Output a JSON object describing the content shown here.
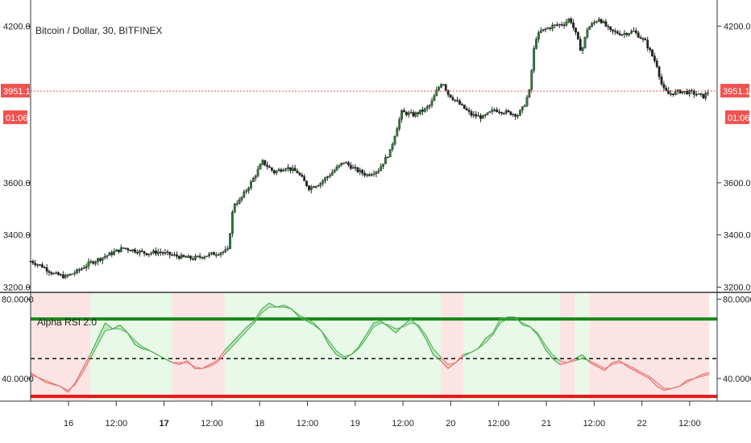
{
  "chart_data": [
    {
      "type": "candlestick",
      "title": "Bitcoin / Dollar, 30, BITFINEX",
      "ylim": [
        3180,
        4300
      ],
      "y_ticks": [
        3200,
        3400,
        3600,
        4200
      ],
      "y_tick_labels": [
        "3200.0",
        "3400.0",
        "3600.0",
        "4200.0"
      ],
      "x_tick_labels": [
        "16",
        "12:00",
        "17",
        "12:00",
        "18",
        "12:00",
        "19",
        "12:00",
        "20",
        "12:00",
        "21",
        "12:00",
        "22",
        "12:00"
      ],
      "x_tick_bold": [
        false,
        false,
        true,
        false,
        false,
        false,
        false,
        false,
        false,
        false,
        false,
        false,
        false,
        false
      ],
      "current_price": 3951.1,
      "current_price_label": "3951.1",
      "countdown_label": "01:06",
      "price_path": [
        [
          0,
          3300
        ],
        [
          10,
          3280
        ],
        [
          20,
          3250
        ],
        [
          30,
          3240
        ],
        [
          40,
          3260
        ],
        [
          50,
          3290
        ],
        [
          60,
          3310
        ],
        [
          70,
          3330
        ],
        [
          80,
          3350
        ],
        [
          90,
          3340
        ],
        [
          100,
          3330
        ],
        [
          110,
          3335
        ],
        [
          120,
          3325
        ],
        [
          130,
          3315
        ],
        [
          140,
          3310
        ],
        [
          150,
          3320
        ],
        [
          160,
          3330
        ],
        [
          170,
          3340
        ],
        [
          175,
          3520
        ],
        [
          180,
          3530
        ],
        [
          190,
          3600
        ],
        [
          200,
          3680
        ],
        [
          210,
          3640
        ],
        [
          220,
          3660
        ],
        [
          230,
          3640
        ],
        [
          240,
          3580
        ],
        [
          250,
          3600
        ],
        [
          260,
          3640
        ],
        [
          270,
          3680
        ],
        [
          280,
          3650
        ],
        [
          290,
          3630
        ],
        [
          300,
          3650
        ],
        [
          310,
          3720
        ],
        [
          315,
          3800
        ],
        [
          320,
          3870
        ],
        [
          330,
          3860
        ],
        [
          340,
          3880
        ],
        [
          345,
          3900
        ],
        [
          350,
          3950
        ],
        [
          355,
          3990
        ],
        [
          360,
          3940
        ],
        [
          370,
          3900
        ],
        [
          380,
          3860
        ],
        [
          390,
          3850
        ],
        [
          400,
          3880
        ],
        [
          410,
          3870
        ],
        [
          420,
          3860
        ],
        [
          425,
          3890
        ],
        [
          430,
          3950
        ],
        [
          435,
          4150
        ],
        [
          440,
          4180
        ],
        [
          450,
          4200
        ],
        [
          460,
          4210
        ],
        [
          465,
          4230
        ],
        [
          470,
          4170
        ],
        [
          475,
          4100
        ],
        [
          480,
          4190
        ],
        [
          490,
          4230
        ],
        [
          500,
          4180
        ],
        [
          510,
          4170
        ],
        [
          520,
          4180
        ],
        [
          530,
          4140
        ],
        [
          540,
          4050
        ],
        [
          545,
          3960
        ],
        [
          550,
          3940
        ],
        [
          560,
          3950
        ],
        [
          570,
          3945
        ],
        [
          580,
          3930
        ],
        [
          585,
          3951
        ]
      ]
    },
    {
      "type": "line",
      "title": "Alpha RSI 2.0",
      "ylim": [
        29,
        83
      ],
      "y_ticks": [
        40,
        80
      ],
      "y_tick_labels": [
        "40.0000",
        "80.0000"
      ],
      "overbought": 70,
      "midline": 50,
      "oversold": 31,
      "rsi": [
        [
          0,
          43
        ],
        [
          10,
          38
        ],
        [
          20,
          36
        ],
        [
          25,
          33
        ],
        [
          30,
          38
        ],
        [
          35,
          45
        ],
        [
          40,
          52
        ],
        [
          45,
          60
        ],
        [
          50,
          68
        ],
        [
          55,
          65
        ],
        [
          60,
          67
        ],
        [
          65,
          63
        ],
        [
          70,
          57
        ],
        [
          75,
          55
        ],
        [
          80,
          54
        ],
        [
          85,
          52
        ],
        [
          90,
          50
        ],
        [
          95,
          48
        ],
        [
          100,
          47
        ],
        [
          105,
          49
        ],
        [
          110,
          45
        ],
        [
          115,
          45
        ],
        [
          120,
          47
        ],
        [
          125,
          49
        ],
        [
          130,
          54
        ],
        [
          135,
          58
        ],
        [
          140,
          62
        ],
        [
          145,
          66
        ],
        [
          150,
          69
        ],
        [
          155,
          75
        ],
        [
          160,
          78
        ],
        [
          165,
          76
        ],
        [
          170,
          77
        ],
        [
          175,
          75
        ],
        [
          180,
          71
        ],
        [
          185,
          69
        ],
        [
          190,
          67
        ],
        [
          195,
          64
        ],
        [
          200,
          57
        ],
        [
          205,
          52
        ],
        [
          210,
          50
        ],
        [
          215,
          52
        ],
        [
          220,
          56
        ],
        [
          225,
          62
        ],
        [
          230,
          68
        ],
        [
          235,
          69
        ],
        [
          240,
          66
        ],
        [
          245,
          63
        ],
        [
          250,
          67
        ],
        [
          255,
          70
        ],
        [
          260,
          66
        ],
        [
          265,
          60
        ],
        [
          270,
          52
        ],
        [
          275,
          49
        ],
        [
          280,
          45
        ],
        [
          285,
          48
        ],
        [
          290,
          52
        ],
        [
          295,
          53
        ],
        [
          300,
          55
        ],
        [
          305,
          60
        ],
        [
          310,
          63
        ],
        [
          315,
          70
        ],
        [
          320,
          71
        ],
        [
          325,
          71
        ],
        [
          330,
          67
        ],
        [
          335,
          66
        ],
        [
          340,
          62
        ],
        [
          345,
          55
        ],
        [
          350,
          50
        ],
        [
          355,
          47
        ],
        [
          360,
          48
        ],
        [
          365,
          50
        ],
        [
          370,
          52
        ],
        [
          375,
          48
        ],
        [
          380,
          46
        ],
        [
          385,
          44
        ],
        [
          390,
          48
        ],
        [
          395,
          49
        ],
        [
          400,
          46
        ],
        [
          405,
          44
        ],
        [
          410,
          42
        ],
        [
          415,
          40
        ],
        [
          420,
          36
        ],
        [
          425,
          34
        ],
        [
          430,
          35
        ],
        [
          435,
          36
        ],
        [
          440,
          39
        ],
        [
          445,
          40
        ],
        [
          450,
          42
        ],
        [
          455,
          43
        ]
      ],
      "rsi_smooth": [
        [
          0,
          42
        ],
        [
          10,
          39
        ],
        [
          20,
          36
        ],
        [
          25,
          34
        ],
        [
          30,
          37
        ],
        [
          35,
          43
        ],
        [
          40,
          50
        ],
        [
          45,
          57
        ],
        [
          50,
          64
        ],
        [
          55,
          65
        ],
        [
          60,
          65
        ],
        [
          65,
          63
        ],
        [
          70,
          59
        ],
        [
          75,
          56
        ],
        [
          80,
          54
        ],
        [
          85,
          52
        ],
        [
          90,
          50
        ],
        [
          95,
          48
        ],
        [
          100,
          48
        ],
        [
          105,
          48
        ],
        [
          110,
          46
        ],
        [
          115,
          45
        ],
        [
          120,
          46
        ],
        [
          125,
          48
        ],
        [
          130,
          52
        ],
        [
          135,
          56
        ],
        [
          140,
          60
        ],
        [
          145,
          64
        ],
        [
          150,
          68
        ],
        [
          155,
          73
        ],
        [
          160,
          76
        ],
        [
          165,
          76
        ],
        [
          170,
          76
        ],
        [
          175,
          75
        ],
        [
          180,
          72
        ],
        [
          185,
          70
        ],
        [
          190,
          68
        ],
        [
          195,
          64
        ],
        [
          200,
          59
        ],
        [
          205,
          54
        ],
        [
          210,
          51
        ],
        [
          215,
          52
        ],
        [
          220,
          55
        ],
        [
          225,
          60
        ],
        [
          230,
          66
        ],
        [
          235,
          68
        ],
        [
          240,
          67
        ],
        [
          245,
          65
        ],
        [
          250,
          66
        ],
        [
          255,
          68
        ],
        [
          260,
          67
        ],
        [
          265,
          62
        ],
        [
          270,
          55
        ],
        [
          275,
          51
        ],
        [
          280,
          47
        ],
        [
          285,
          48
        ],
        [
          290,
          51
        ],
        [
          295,
          53
        ],
        [
          300,
          55
        ],
        [
          305,
          58
        ],
        [
          310,
          62
        ],
        [
          315,
          68
        ],
        [
          320,
          70
        ],
        [
          325,
          70
        ],
        [
          330,
          68
        ],
        [
          335,
          66
        ],
        [
          340,
          63
        ],
        [
          345,
          57
        ],
        [
          350,
          52
        ],
        [
          355,
          49
        ],
        [
          360,
          48
        ],
        [
          365,
          49
        ],
        [
          370,
          50
        ],
        [
          375,
          49
        ],
        [
          380,
          47
        ],
        [
          385,
          45
        ],
        [
          390,
          47
        ],
        [
          395,
          48
        ],
        [
          400,
          47
        ],
        [
          405,
          45
        ],
        [
          410,
          43
        ],
        [
          415,
          41
        ],
        [
          420,
          38
        ],
        [
          425,
          35
        ],
        [
          430,
          35
        ],
        [
          435,
          36
        ],
        [
          440,
          38
        ],
        [
          445,
          40
        ],
        [
          450,
          41
        ],
        [
          455,
          42
        ]
      ]
    }
  ],
  "colors": {
    "up": "#2e7d32",
    "down": "#222222",
    "current_line": "#ef5350",
    "price_tag": "#ef5350",
    "rsi_bull": "#4caf50",
    "rsi_bear": "#e57373",
    "bg_bull": "#e8f9e8",
    "bg_bear": "#fde4e4",
    "overbought_line": "#1b8a1b",
    "oversold_line": "#e81515"
  }
}
